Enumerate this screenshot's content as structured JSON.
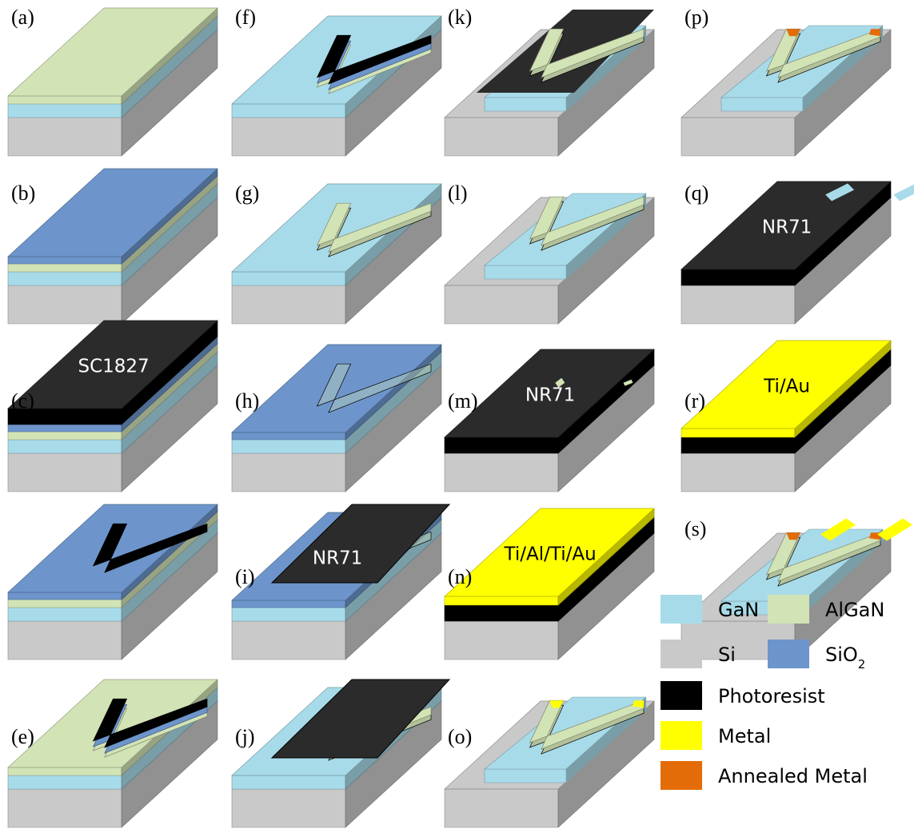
{
  "colors": {
    "GaN": "#a8dbe9",
    "AlGaN": "#d2e3b6",
    "Si": "#c9c9c9",
    "SiO2": "#6d95cb",
    "Photoresist": "#000000",
    "Metal": "#ffff00",
    "Annealed Metal": "#e36c09",
    "NR71": "#2b2b2b"
  },
  "panels": [
    {
      "id": "a",
      "label": "(a)",
      "layers": [
        "Si",
        "GaN",
        "AlGaN"
      ],
      "overlay": "",
      "vshape": "none",
      "step": "none"
    },
    {
      "id": "b",
      "label": "(b)",
      "layers": [
        "Si",
        "GaN",
        "AlGaN",
        "SiO2"
      ],
      "overlay": "",
      "vshape": "none",
      "step": "none"
    },
    {
      "id": "c",
      "label": "(c)",
      "layers": [
        "Si",
        "GaN",
        "AlGaN",
        "SiO2",
        "Photoresist"
      ],
      "overlay": "SC1827",
      "vshape": "none",
      "step": "none"
    },
    {
      "id": "d",
      "label": "",
      "layers": [
        "Si",
        "GaN",
        "AlGaN",
        "SiO2"
      ],
      "overlay": "",
      "vshape": "photoresist",
      "step": "none"
    },
    {
      "id": "e",
      "label": "(e)",
      "layers": [
        "Si",
        "GaN",
        "AlGaN"
      ],
      "overlay": "",
      "vshape": "stack",
      "step": "none"
    },
    {
      "id": "f",
      "label": "(f)",
      "layers": [
        "Si",
        "GaN"
      ],
      "overlay": "",
      "vshape": "stack",
      "step": "none"
    },
    {
      "id": "g",
      "label": "(g)",
      "layers": [
        "Si",
        "GaN"
      ],
      "overlay": "",
      "vshape": "algan",
      "step": "none"
    },
    {
      "id": "h",
      "label": "(h)",
      "layers": [
        "Si",
        "GaN",
        "SiO2"
      ],
      "overlay": "",
      "vshape": "ghost",
      "step": "none"
    },
    {
      "id": "i",
      "label": "(i)",
      "layers": [
        "Si",
        "GaN",
        "SiO2"
      ],
      "overlay": "NR71",
      "vshape": "ghost",
      "step": "floating"
    },
    {
      "id": "j",
      "label": "(j)",
      "layers": [
        "Si",
        "GaN"
      ],
      "overlay": "",
      "vshape": "algan",
      "step": "floating"
    },
    {
      "id": "k",
      "label": "(k)",
      "layers": [
        "Si",
        "GaN"
      ],
      "overlay": "",
      "vshape": "algan",
      "step": "mesa-cap"
    },
    {
      "id": "l",
      "label": "(l)",
      "layers": [
        "Si",
        "GaN"
      ],
      "overlay": "",
      "vshape": "algan",
      "step": "mesa"
    },
    {
      "id": "m",
      "label": "(m)",
      "layers": [
        "Si",
        "Photoresist"
      ],
      "overlay": "NR71",
      "vshape": "none",
      "step": "resist-openings"
    },
    {
      "id": "n",
      "label": "(n)",
      "layers": [
        "Si",
        "Photoresist",
        "Metal"
      ],
      "overlay": "Ti/Al/Ti/Au",
      "vshape": "none",
      "step": "none"
    },
    {
      "id": "o",
      "label": "(o)",
      "layers": [
        "Si",
        "GaN"
      ],
      "overlay": "",
      "vshape": "algan-metal",
      "step": "mesa"
    },
    {
      "id": "p",
      "label": "(p)",
      "layers": [
        "Si",
        "GaN"
      ],
      "overlay": "",
      "vshape": "algan-annealed",
      "step": "mesa"
    },
    {
      "id": "q",
      "label": "(q)",
      "layers": [
        "Si",
        "Photoresist"
      ],
      "overlay": "NR71",
      "vshape": "none",
      "step": "resist-pads"
    },
    {
      "id": "r",
      "label": "(r)",
      "layers": [
        "Si",
        "Photoresist",
        "Metal"
      ],
      "overlay": "Ti/Au",
      "vshape": "none",
      "step": "none"
    },
    {
      "id": "s",
      "label": "(s)",
      "layers": [
        "Si",
        "GaN"
      ],
      "overlay": "",
      "vshape": "algan-annealed",
      "step": "mesa-pads"
    }
  ],
  "legend": [
    {
      "key": "GaN",
      "label": "GaN"
    },
    {
      "key": "AlGaN",
      "label": "AlGaN"
    },
    {
      "key": "Si",
      "label": "Si"
    },
    {
      "key": "SiO2",
      "label": "SiO",
      "sub": "2"
    },
    {
      "key": "Photoresist",
      "label": "Photoresist"
    },
    {
      "key": "Metal",
      "label": "Metal"
    },
    {
      "key": "Annealed Metal",
      "label": "Annealed Metal"
    }
  ]
}
